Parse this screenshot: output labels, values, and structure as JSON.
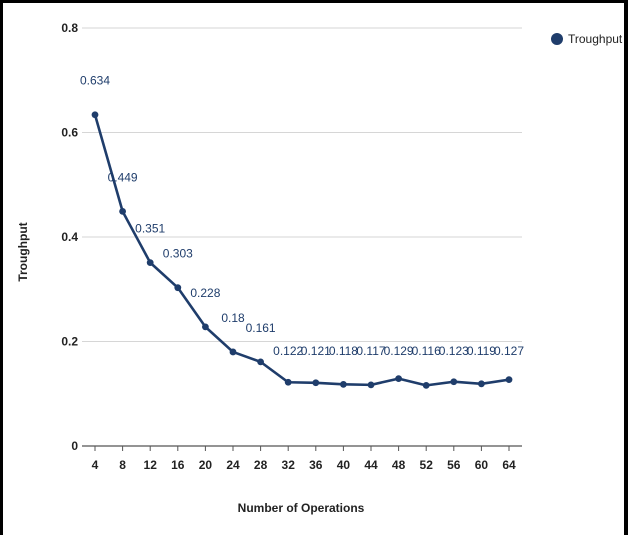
{
  "chart_data": {
    "type": "line",
    "title": "",
    "xlabel": "Number of Operations",
    "ylabel": "Troughput",
    "categories": [
      "4",
      "8",
      "12",
      "16",
      "20",
      "24",
      "28",
      "32",
      "36",
      "40",
      "44",
      "48",
      "52",
      "56",
      "60",
      "64"
    ],
    "y_ticks": [
      "0",
      "0.2",
      "0.4",
      "0.6",
      "0.8"
    ],
    "ylim": [
      0,
      0.8
    ],
    "grid": true,
    "legend_position": "top-right",
    "series": [
      {
        "name": "Troughput",
        "color": "#1f3d6b",
        "values": [
          0.634,
          0.449,
          0.351,
          0.303,
          0.228,
          0.18,
          0.161,
          0.122,
          0.121,
          0.118,
          0.117,
          0.129,
          0.116,
          0.123,
          0.119,
          0.127
        ],
        "labels": [
          "0.634",
          "0.449",
          "0.351",
          "0.303",
          "0.228",
          "0.18",
          "0.161",
          "0.122",
          "0.121",
          "0.118",
          "0.117",
          "0.129",
          "0.116",
          "0.123",
          "0.119",
          "0.127"
        ]
      }
    ]
  }
}
